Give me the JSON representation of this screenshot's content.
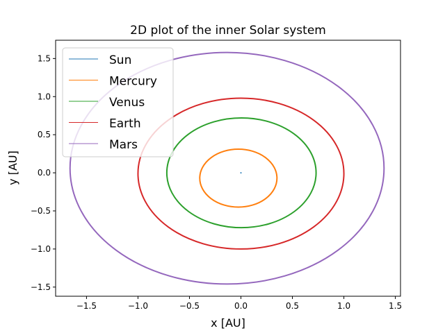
{
  "chart_data": {
    "type": "line",
    "title": "2D plot of the inner Solar system",
    "xlabel": "x [AU]",
    "ylabel": "y [AU]",
    "xlim": [
      -1.8,
      1.55
    ],
    "ylim": [
      -1.62,
      1.74
    ],
    "xticks": [
      -1.5,
      -1.0,
      -0.5,
      0.0,
      0.5,
      1.0,
      1.5
    ],
    "xtick_labels": [
      "−1.5",
      "−1.0",
      "−0.5",
      "0.0",
      "0.5",
      "1.0",
      "1.5"
    ],
    "yticks": [
      -1.5,
      -1.0,
      -0.5,
      0.0,
      0.5,
      1.0,
      1.5
    ],
    "ytick_labels": [
      "−1.5",
      "−1.0",
      "−0.5",
      "0.0",
      "0.5",
      "1.0",
      "1.5"
    ],
    "grid": false,
    "legend_position": "top-left",
    "series": [
      {
        "name": "Sun",
        "color": "#1f77b4",
        "orbit": {
          "x_min": 0.0,
          "x_max": 0.0,
          "y_min": 0.0,
          "y_max": 0.0
        }
      },
      {
        "name": "Mercury",
        "color": "#ff7f0e",
        "orbit": {
          "x_min": -0.4,
          "x_max": 0.35,
          "y_min": -0.45,
          "y_max": 0.31
        }
      },
      {
        "name": "Venus",
        "color": "#2ca02c",
        "orbit": {
          "x_min": -0.72,
          "x_max": 0.73,
          "y_min": -0.72,
          "y_max": 0.72
        }
      },
      {
        "name": "Earth",
        "color": "#d62728",
        "orbit": {
          "x_min": -1.0,
          "x_max": 1.0,
          "y_min": -1.0,
          "y_max": 0.98
        }
      },
      {
        "name": "Mars",
        "color": "#9467bd",
        "orbit": {
          "x_min": -1.66,
          "x_max": 1.39,
          "y_min": -1.46,
          "y_max": 1.58
        }
      }
    ]
  }
}
